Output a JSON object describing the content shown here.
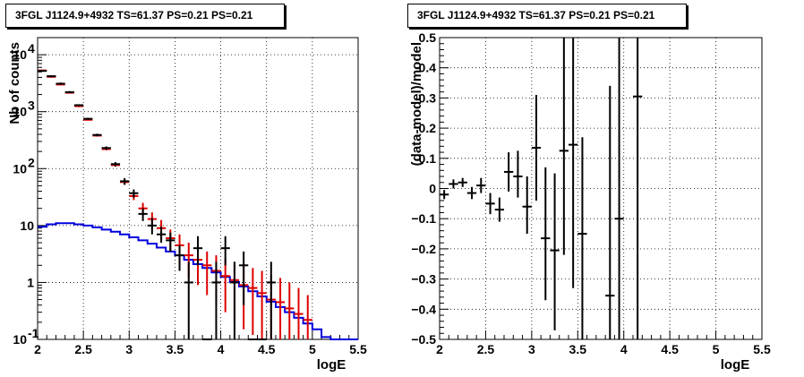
{
  "chart_data": [
    {
      "type": "line",
      "title": "3FGL J1124.9+4932 TS=61.37 PS=0.21 PS=0.21",
      "xlabel": "logE",
      "ylabel": "Nb of counts",
      "xlim": [
        2,
        5.5
      ],
      "ylim": [
        0.1,
        20000
      ],
      "yscale": "log",
      "grid": true,
      "x_ticks": [
        "2",
        "2.5",
        "3",
        "3.5",
        "4",
        "4.5",
        "5",
        "5.5"
      ],
      "y_ticks": [
        {
          "label": "10",
          "exp": "-1",
          "value": 0.1
        },
        {
          "label": "1",
          "exp": "",
          "value": 1
        },
        {
          "label": "10",
          "exp": "",
          "value": 10
        },
        {
          "label": "10",
          "exp": "2",
          "value": 100
        },
        {
          "label": "10",
          "exp": "3",
          "value": 1000
        },
        {
          "label": "10",
          "exp": "4",
          "value": 10000
        }
      ],
      "bin_edges": [
        2,
        2.1,
        2.2,
        2.3,
        2.4,
        2.5,
        2.6,
        2.7,
        2.8,
        2.9,
        3,
        3.1,
        3.2,
        3.3,
        3.4,
        3.5,
        3.6,
        3.7,
        3.8,
        3.9,
        4,
        4.1,
        4.2,
        4.3,
        4.4,
        4.5,
        4.6,
        4.7,
        4.8,
        4.9,
        5,
        5.1,
        5.2,
        5.3,
        5.4,
        5.5
      ],
      "series": [
        {
          "role": "data",
          "color": "#000000",
          "x": [
            2.05,
            2.15,
            2.25,
            2.35,
            2.45,
            2.55,
            2.65,
            2.75,
            2.85,
            2.95,
            3.05,
            3.15,
            3.25,
            3.35,
            3.45,
            3.55,
            3.65,
            3.75,
            3.85,
            3.95,
            4.05,
            4.15,
            4.25,
            4.35,
            4.45,
            4.55
          ],
          "y": [
            5200,
            4200,
            3100,
            2200,
            1300,
            750,
            390,
            230,
            120,
            60,
            37,
            16,
            10,
            7,
            5.5,
            3,
            1,
            4,
            0.1,
            1,
            4,
            1,
            2,
            0.1,
            0.1,
            1
          ],
          "y_low": [
            5050,
            4050,
            3000,
            2150,
            1250,
            720,
            370,
            215,
            110,
            52,
            31,
            12,
            7,
            5,
            3.5,
            1.6,
            0.1,
            2,
            0.1,
            0.1,
            2,
            0.1,
            0.4,
            0.1,
            0.1,
            0.1
          ],
          "y_high": [
            5350,
            4350,
            3250,
            2300,
            1350,
            780,
            410,
            245,
            130,
            68,
            43,
            20,
            13.5,
            9.5,
            7.5,
            4.5,
            2.3,
            6.5,
            0.1,
            2.3,
            6.5,
            2.3,
            3.5,
            0.1,
            0.1,
            2.3
          ]
        },
        {
          "role": "model",
          "color": "#dd0000",
          "x": [
            2.05,
            2.15,
            2.25,
            2.35,
            2.45,
            2.55,
            2.65,
            2.75,
            2.85,
            2.95,
            3.05,
            3.15,
            3.25,
            3.35,
            3.45,
            3.55,
            3.65,
            3.75,
            3.85,
            3.95,
            4.05,
            4.15,
            4.25,
            4.35,
            4.45,
            4.55,
            4.65,
            4.75,
            4.85,
            4.95
          ],
          "y": [
            5300,
            4100,
            3000,
            2150,
            1250,
            720,
            380,
            220,
            115,
            58,
            33,
            20,
            13,
            9,
            6,
            4.5,
            3,
            2.5,
            2,
            1.6,
            1.3,
            1.1,
            0.9,
            0.8,
            0.65,
            0.5,
            0.45,
            0.35,
            0.28,
            0.22
          ],
          "y_low": [
            5150,
            3950,
            2900,
            2100,
            1200,
            700,
            365,
            210,
            108,
            52,
            28,
            15,
            9,
            5.5,
            3.5,
            2,
            1.2,
            0.9,
            0.6,
            0.4,
            0.3,
            0.2,
            0.15,
            0.12,
            0.1,
            0.1,
            0.1,
            0.1,
            0.1,
            0.1
          ],
          "y_high": [
            5450,
            4250,
            3100,
            2200,
            1300,
            740,
            395,
            230,
            122,
            64,
            38,
            25,
            17,
            12.5,
            8.5,
            7,
            5,
            4.5,
            3.5,
            3,
            2.6,
            2.3,
            2,
            1.8,
            1.6,
            1.4,
            1.2,
            1,
            0.8,
            0.6
          ]
        },
        {
          "role": "model-component",
          "color": "#0000dd",
          "step_values": [
            9.5,
            10.5,
            11,
            11,
            10.5,
            10,
            9.3,
            8.5,
            7.8,
            7,
            6.2,
            5.5,
            4.8,
            4.1,
            3.5,
            3,
            2.5,
            2.1,
            1.8,
            1.5,
            1.25,
            1.02,
            0.85,
            0.7,
            0.57,
            0.46,
            0.37,
            0.3,
            0.24,
            0.19,
            0.15,
            0.11,
            0.1,
            0.1,
            0.1
          ]
        }
      ]
    },
    {
      "type": "scatter",
      "title": "3FGL J1124.9+4932 TS=61.37 PS=0.21 PS=0.21",
      "xlabel": "logE",
      "ylabel": "(data-model)/model",
      "xlim": [
        2,
        5.5
      ],
      "ylim": [
        -0.5,
        0.5
      ],
      "grid": true,
      "x_ticks": [
        "2",
        "2.5",
        "3",
        "3.5",
        "4",
        "4.5",
        "5",
        "5.5"
      ],
      "y_ticks": [
        "−0.5",
        "−0.4",
        "−0.3",
        "−0.2",
        "−0.1",
        "0",
        "0.1",
        "0.2",
        "0.3",
        "0.4",
        "0.5"
      ],
      "series": [
        {
          "color": "#000000",
          "x": [
            2.05,
            2.15,
            2.25,
            2.35,
            2.45,
            2.55,
            2.65,
            2.75,
            2.85,
            2.95,
            3.05,
            3.15,
            3.25,
            3.35,
            3.45,
            3.55,
            3.85,
            3.95,
            4.15
          ],
          "y": [
            -0.02,
            0.015,
            0.02,
            -0.015,
            0.01,
            -0.05,
            -0.07,
            0.055,
            0.04,
            -0.06,
            0.135,
            -0.165,
            -0.205,
            0.125,
            0.145,
            -0.15,
            -0.355,
            -0.1,
            0.305
          ],
          "y_low": [
            -0.035,
            0.0,
            0.005,
            -0.035,
            -0.015,
            -0.085,
            -0.11,
            -0.01,
            -0.03,
            -0.15,
            -0.04,
            -0.37,
            -0.47,
            -0.22,
            -0.33,
            -0.5,
            -0.5,
            -0.5,
            -0.5
          ],
          "y_high": [
            -0.005,
            0.03,
            0.035,
            0.005,
            0.035,
            -0.015,
            -0.03,
            0.12,
            0.125,
            0.04,
            0.31,
            0.07,
            0.05,
            0.5,
            0.5,
            0.17,
            0.34,
            0.5,
            0.5
          ]
        }
      ]
    }
  ]
}
